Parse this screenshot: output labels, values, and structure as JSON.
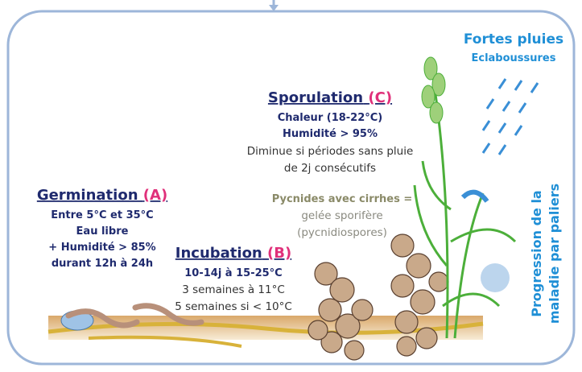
{
  "rain": {
    "title": "Fortes pluies",
    "subtitle": "Eclaboussures"
  },
  "sporulation": {
    "title": "Sporulation",
    "letter": "(C)",
    "lines": [
      "Chaleur (18-22°C)",
      "Humidité > 95%",
      "Diminue si périodes sans pluie",
      "de 2j consécutifs"
    ]
  },
  "pycnides": {
    "lines": [
      "Pycnides avec cirrhes =",
      "gelée sporifère",
      "(pycnidiospores)"
    ]
  },
  "germination": {
    "title": "Germination",
    "letter": "(A)",
    "lines": [
      "Entre 5°C et 35°C",
      "Eau libre",
      "+ Humidité > 85%",
      "durant 12h à 24h"
    ]
  },
  "incubation": {
    "title": "Incubation",
    "letter": "(B)",
    "lines": [
      "10-14j à 15-25°C",
      "3 semaines à 11°C",
      "5 semaines si < 10°C"
    ]
  },
  "progression": {
    "lines": [
      "Progression de la",
      "maladie par paliers"
    ]
  }
}
